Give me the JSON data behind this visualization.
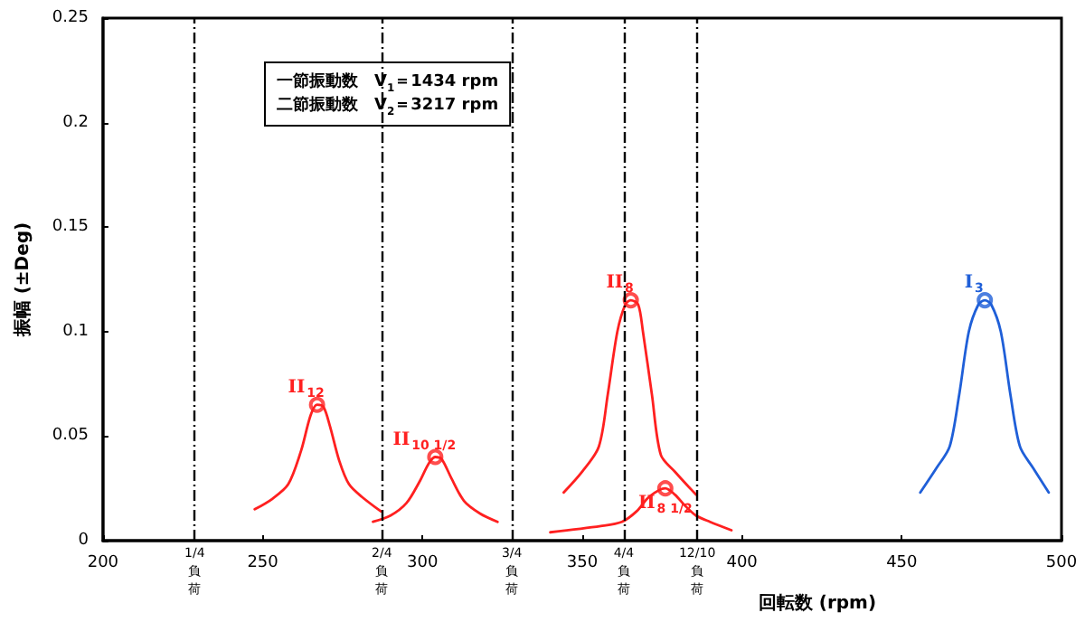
{
  "chart_data": {
    "type": "line",
    "xlabel": "回転数 (rpm)",
    "ylabel": "振幅 (±Deg)",
    "xlim": [
      200,
      500
    ],
    "xticks": [
      200,
      250,
      300,
      350,
      400,
      450,
      500
    ],
    "ylim": [
      0,
      0.25
    ],
    "yticks": [
      0,
      0.05,
      0.1,
      0.15,
      0.2,
      0.25
    ],
    "grid": false,
    "legend": false,
    "marker": "none",
    "line_style": "solid",
    "series": [
      {
        "name": "II$_{12}$",
        "color": "#ff2020",
        "x": [
          247.5,
          253,
          258,
          262,
          265,
          267,
          269,
          271,
          274,
          277,
          281,
          287
        ],
        "values": [
          0.015,
          0.02,
          0.027,
          0.043,
          0.06,
          0.065,
          0.064,
          0.055,
          0.038,
          0.027,
          0.021,
          0.014
        ]
      },
      {
        "name": "II$_{10 1/2}$",
        "color": "#ff2020",
        "x": [
          284.5,
          290,
          295,
          299,
          302,
          304,
          306,
          309,
          313,
          318,
          323.5
        ],
        "values": [
          0.009,
          0.012,
          0.018,
          0.028,
          0.037,
          0.04,
          0.039,
          0.03,
          0.019,
          0.013,
          0.009
        ]
      },
      {
        "name": "II$_{8}$",
        "color": "#ff2020",
        "x": [
          344.2,
          350,
          355.2,
          358,
          361,
          363.5,
          365.2,
          367.5,
          369,
          371.8,
          374.6,
          379,
          385.6
        ],
        "values": [
          0.023,
          0.033,
          0.045,
          0.07,
          0.1,
          0.113,
          0.115,
          0.113,
          0.1,
          0.07,
          0.041,
          0.033,
          0.022
        ]
      },
      {
        "name": "II$_{8 1/2}$",
        "color": "#ff2020",
        "x": [
          340,
          355.8,
          362.4,
          367,
          371,
          376,
          379,
          382,
          385.6,
          390,
          396.7
        ],
        "values": [
          0.004,
          0.007,
          0.009,
          0.014,
          0.021,
          0.025,
          0.022,
          0.017,
          0.012,
          0.009,
          0.005
        ]
      },
      {
        "name": "I$_{3}$",
        "color": "#1f5fd8",
        "x": [
          455.8,
          461,
          465,
          468,
          471,
          474,
          476,
          478,
          481,
          484,
          487,
          491,
          496
        ],
        "values": [
          0.023,
          0.035,
          0.045,
          0.07,
          0.1,
          0.113,
          0.115,
          0.113,
          0.1,
          0.07,
          0.045,
          0.035,
          0.023
        ]
      },
      {
        "type": "scatter",
        "marker": "circle",
        "color": "#ff2020",
        "x": [
          267,
          304,
          365.2,
          376
        ],
        "values": [
          0.065,
          0.04,
          0.115,
          0.025
        ]
      },
      {
        "type": "scatter",
        "marker": "circle",
        "color": "#1f5fd8",
        "x": [
          476
        ],
        "values": [
          0.115
        ]
      }
    ],
    "ref_lines": [
      {
        "axis": "x",
        "value": 228.7,
        "label": "1/4 負荷",
        "color": "#000000",
        "line_style": "dashed"
      },
      {
        "axis": "x",
        "value": 287.3,
        "label": "2/4 負荷",
        "color": "#000000",
        "line_style": "dashed"
      },
      {
        "axis": "x",
        "value": 328,
        "label": "3/4 負荷",
        "color": "#000000",
        "line_style": "dashed"
      },
      {
        "axis": "x",
        "value": 363,
        "label": "4/4 負荷",
        "color": "#000000",
        "line_style": "dashed"
      },
      {
        "axis": "x",
        "value": 386,
        "label": "12/10 負荷",
        "color": "#000000",
        "line_style": "dashed"
      }
    ],
    "annotations": [
      "一節振動数　V$_{1}$＝1434 rpm",
      "二節振動数　V$_{2}$＝3217 rpm"
    ]
  }
}
